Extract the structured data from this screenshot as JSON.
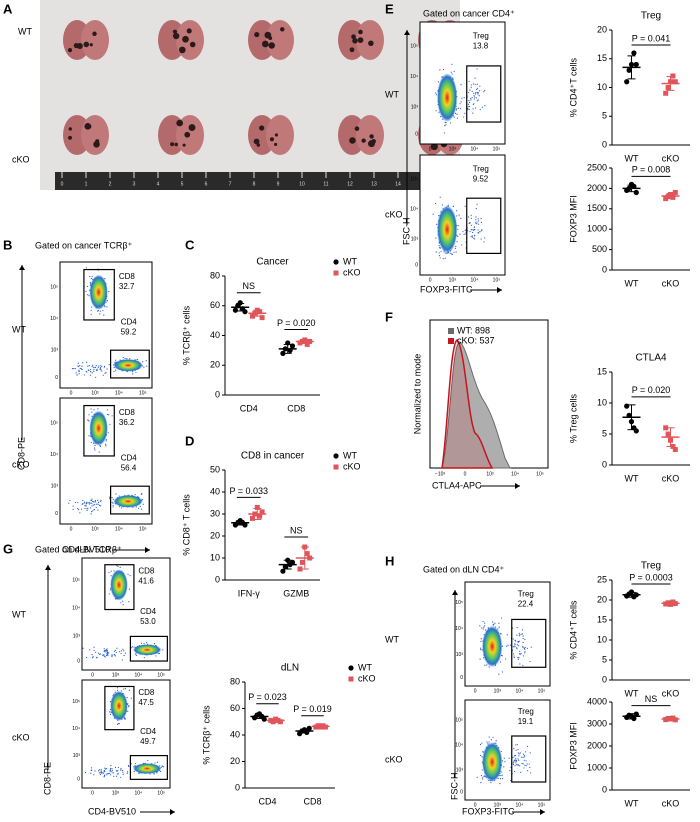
{
  "panel_letters": [
    "A",
    "B",
    "C",
    "D",
    "E",
    "F",
    "G",
    "H"
  ],
  "photo": {
    "rows": [
      "WT",
      "cKO"
    ],
    "ruler": [
      "0",
      "1",
      "2",
      "3",
      "4",
      "5",
      "6",
      "7",
      "8",
      "9",
      "10",
      "11",
      "12",
      "13",
      "14",
      "15",
      "16"
    ]
  },
  "flow_axis_ticks": [
    "0",
    "10³",
    "10⁴",
    "10⁵"
  ],
  "flow_panels": [
    {
      "title": "Gated on cancer TCRβ⁺",
      "rows": [
        "WT",
        "cKO"
      ],
      "y_axis": "CD8-PE",
      "x_axis": "CD4-BV510",
      "plots": [
        {
          "gates": [
            {
              "name": "CD8",
              "value": "32.7"
            },
            {
              "name": "CD4",
              "value": "59.2"
            }
          ]
        },
        {
          "gates": [
            {
              "name": "CD8",
              "value": "36.2"
            },
            {
              "name": "CD4",
              "value": "56.4"
            }
          ]
        }
      ]
    },
    {
      "title": "Gated on cancer CD4⁺",
      "rows": [
        "WT",
        "cKO"
      ],
      "y_axis": "FSC-H",
      "x_axis": "FOXP3-FITC",
      "plots": [
        {
          "gates": [
            {
              "name": "Treg",
              "value": "13.8"
            }
          ]
        },
        {
          "gates": [
            {
              "name": "Treg",
              "value": "9.52"
            }
          ]
        }
      ]
    },
    {
      "title": "Gated on dLN TCRβ⁺",
      "rows": [
        "WT",
        "cKO"
      ],
      "y_axis": "CD8-PE",
      "x_axis": "CD4-BV510",
      "plots": [
        {
          "gates": [
            {
              "name": "CD8",
              "value": "41.6"
            },
            {
              "name": "CD4",
              "value": "53.0"
            }
          ]
        },
        {
          "gates": [
            {
              "name": "CD8",
              "value": "47.5"
            },
            {
              "name": "CD4",
              "value": "49.7"
            }
          ]
        }
      ]
    },
    {
      "title": "Gated on dLN CD4⁺",
      "rows": [
        "WT",
        "cKO"
      ],
      "y_axis": "FSC-H",
      "x_axis": "FOXP3-FITC",
      "plots": [
        {
          "gates": [
            {
              "name": "Treg",
              "value": "22.4"
            }
          ]
        },
        {
          "gates": [
            {
              "name": "Treg",
              "value": "19.1"
            }
          ]
        }
      ]
    }
  ],
  "histogram": {
    "y_axis": "Normalized to mode",
    "x_axis": "CTLA4-APC",
    "legend": [
      {
        "name": "WT: 898",
        "color": "#6b6b6b"
      },
      {
        "name": "cKO: 537",
        "color": "#c4161c"
      }
    ],
    "x_ticks": [
      "−10³",
      "0",
      "10³",
      "10⁴",
      "10⁵"
    ]
  },
  "chart_data": [
    {
      "type": "dot",
      "title": "Cancer",
      "y_label": "% TCRβ⁺ cells",
      "categories": [
        "CD4",
        "CD8"
      ],
      "ylim": [
        0,
        80
      ],
      "yticks": [
        0,
        20,
        40,
        60,
        80
      ],
      "legend": "right",
      "p_values": [
        "NS",
        "P = 0.020"
      ],
      "series": [
        {
          "name": "WT",
          "color": "#000000",
          "marker": "circle",
          "values": [
            59,
            31
          ],
          "errors": [
            2.5,
            3
          ],
          "points": [
            [
              57,
              60,
              62,
              58,
              56
            ],
            [
              28,
              31,
              35,
              30,
              33
            ]
          ]
        },
        {
          "name": "cKO",
          "color": "#e0555a",
          "marker": "square",
          "values": [
            55,
            36
          ],
          "errors": [
            2,
            1.3
          ],
          "points": [
            [
              53,
              55,
              57,
              56,
              52
            ],
            [
              35,
              36,
              37,
              34,
              36
            ]
          ]
        }
      ]
    },
    {
      "type": "dot",
      "title": "CD8 in cancer",
      "y_label": "% CD8⁺ T cells",
      "categories": [
        "IFN-γ",
        "GZMB"
      ],
      "ylim": [
        0,
        50
      ],
      "yticks": [
        0,
        10,
        20,
        30,
        40,
        50
      ],
      "legend": "right",
      "p_values": [
        "P = 0.033",
        "NS"
      ],
      "series": [
        {
          "name": "WT",
          "color": "#000000",
          "marker": "circle",
          "values": [
            26,
            7
          ],
          "errors": [
            1,
            2
          ],
          "points": [
            [
              25,
              26,
              27,
              26,
              25
            ],
            [
              4,
              6,
              9,
              7,
              8
            ]
          ]
        },
        {
          "name": "cKO",
          "color": "#e0555a",
          "marker": "square",
          "values": [
            30,
            10
          ],
          "errors": [
            2.5,
            5
          ],
          "points": [
            [
              28,
              30,
              33,
              29,
              31
            ],
            [
              5,
              8,
              15,
              12,
              10
            ]
          ]
        }
      ]
    },
    {
      "type": "dot",
      "title": "Treg",
      "y_label": "% CD4⁺T cells",
      "categories": [
        "WT",
        "cKO"
      ],
      "ylim": [
        0,
        20
      ],
      "yticks": [
        0,
        5,
        10,
        15,
        20
      ],
      "p_value": "P = 0.041",
      "colors": [
        "#000000",
        "#e0555a"
      ],
      "markers": [
        "circle",
        "square"
      ],
      "values": [
        13.5,
        10.7
      ],
      "errors": [
        2,
        1.2
      ],
      "points": [
        [
          11,
          13,
          14,
          16,
          14
        ],
        [
          9,
          10,
          11,
          12,
          11
        ]
      ]
    },
    {
      "type": "dot",
      "y_label": "FOXP3 MFI",
      "categories": [
        "WT",
        "cKO"
      ],
      "ylim": [
        0,
        2500
      ],
      "yticks": [
        0,
        500,
        1000,
        1500,
        2000,
        2500
      ],
      "p_value": "P = 0.008",
      "colors": [
        "#000000",
        "#e0555a"
      ],
      "markers": [
        "circle",
        "square"
      ],
      "values": [
        2000,
        1815
      ],
      "errors": [
        80,
        60
      ],
      "points": [
        [
          1950,
          2000,
          2100,
          2050,
          1900
        ],
        [
          1750,
          1800,
          1850,
          1780,
          1900
        ]
      ]
    },
    {
      "type": "dot",
      "title": "CTLA4",
      "y_label": "% Treg cells",
      "categories": [
        "WT",
        "cKO"
      ],
      "ylim": [
        0,
        15
      ],
      "yticks": [
        0,
        5,
        10,
        15
      ],
      "p_value": "P = 0.020",
      "colors": [
        "#000000",
        "#e0555a"
      ],
      "markers": [
        "circle",
        "square"
      ],
      "values": [
        7.7,
        4.5
      ],
      "errors": [
        2,
        1.5
      ],
      "points": [
        [
          9.5,
          8,
          7,
          6,
          5.5
        ],
        [
          6,
          5,
          4,
          3,
          2.5
        ]
      ]
    },
    {
      "type": "dot",
      "title": "dLN",
      "y_label": "% TCRβ⁺ cells",
      "categories": [
        "CD4",
        "CD8"
      ],
      "ylim": [
        0,
        80
      ],
      "yticks": [
        0,
        20,
        40,
        60,
        80
      ],
      "legend": "right",
      "p_values": [
        "P = 0.023",
        "P = 0.019"
      ],
      "series": [
        {
          "name": "WT",
          "color": "#000000",
          "marker": "circle",
          "values": [
            54,
            43
          ],
          "errors": [
            1.5,
            1.5
          ],
          "points": [
            [
              53,
              55,
              56,
              54,
              52
            ],
            [
              41,
              43,
              44,
              42,
              45
            ]
          ]
        },
        {
          "name": "cKO",
          "color": "#e0555a",
          "marker": "square",
          "values": [
            51,
            46.5
          ],
          "errors": [
            0.8,
            0.5
          ],
          "points": [
            [
              51,
              50,
              52,
              51,
              50
            ],
            [
              46,
              47,
              46,
              47,
              46
            ]
          ]
        }
      ]
    },
    {
      "type": "dot",
      "title": "Treg",
      "y_label": "% CD4⁺T cells",
      "categories": [
        "WT",
        "cKO"
      ],
      "ylim": [
        0,
        25
      ],
      "yticks": [
        0,
        5,
        10,
        15,
        20,
        25
      ],
      "p_value": "P = 0.0003",
      "colors": [
        "#000000",
        "#e0555a"
      ],
      "markers": [
        "circle",
        "square"
      ],
      "values": [
        21.3,
        19.2
      ],
      "errors": [
        0.6,
        0.3
      ],
      "points": [
        [
          21,
          21.5,
          22,
          20.8,
          21.3
        ],
        [
          19,
          19.3,
          18.9,
          19.5,
          19.1
        ]
      ]
    },
    {
      "type": "dot",
      "y_label": "FOXP3 MFI",
      "categories": [
        "WT",
        "cKO"
      ],
      "ylim": [
        0,
        4000
      ],
      "yticks": [
        0,
        1000,
        2000,
        3000,
        4000
      ],
      "p_value": "NS",
      "colors": [
        "#000000",
        "#e0555a"
      ],
      "markers": [
        "circle",
        "square"
      ],
      "values": [
        3350,
        3230
      ],
      "errors": [
        120,
        40
      ],
      "points": [
        [
          3300,
          3400,
          3350,
          3250,
          3450
        ],
        [
          3200,
          3250,
          3230,
          3270,
          3190
        ]
      ]
    }
  ]
}
